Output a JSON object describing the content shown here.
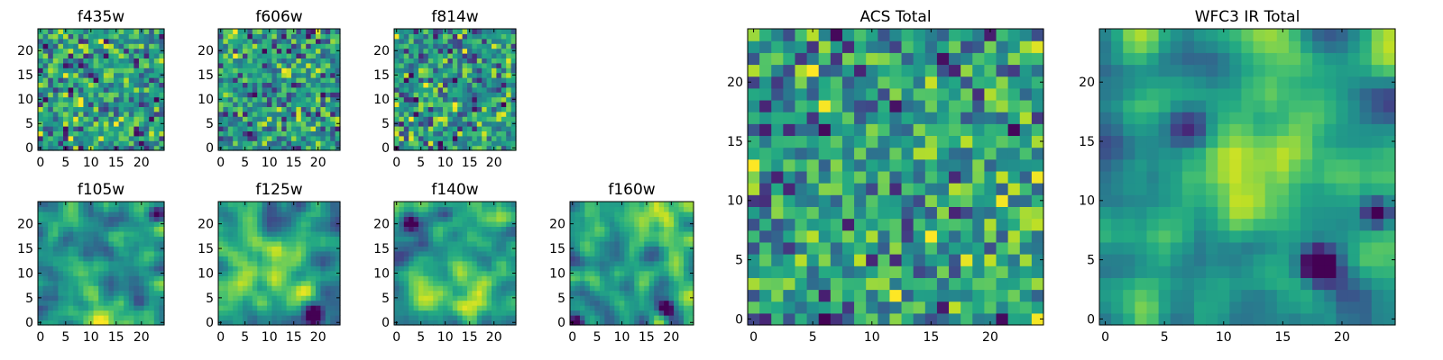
{
  "chart_data": [
    {
      "type": "heatmap",
      "title": "f435w",
      "x_ticks": [
        "0",
        "5",
        "10",
        "15",
        "20"
      ],
      "y_ticks": [
        "0",
        "5",
        "10",
        "15",
        "20"
      ],
      "xlim": [
        0,
        24
      ],
      "ylim": [
        0,
        24
      ],
      "colormap": "viridis",
      "pattern": "uniform noise"
    },
    {
      "type": "heatmap",
      "title": "f606w",
      "x_ticks": [
        "0",
        "5",
        "10",
        "15",
        "20"
      ],
      "y_ticks": [
        "0",
        "5",
        "10",
        "15",
        "20"
      ],
      "xlim": [
        0,
        24
      ],
      "ylim": [
        0,
        24
      ],
      "colormap": "viridis",
      "pattern": "uniform noise"
    },
    {
      "type": "heatmap",
      "title": "f814w",
      "x_ticks": [
        "0",
        "5",
        "10",
        "15",
        "20"
      ],
      "y_ticks": [
        "0",
        "5",
        "10",
        "15",
        "20"
      ],
      "xlim": [
        0,
        24
      ],
      "ylim": [
        0,
        24
      ],
      "colormap": "viridis",
      "pattern": "uniform noise"
    },
    {
      "type": "heatmap",
      "title": "f105w",
      "x_ticks": [
        "0",
        "5",
        "10",
        "15",
        "20"
      ],
      "y_ticks": [
        "0",
        "5",
        "10",
        "15",
        "20"
      ],
      "xlim": [
        0,
        24
      ],
      "ylim": [
        0,
        24
      ],
      "colormap": "viridis",
      "pattern": "smooth, bright lower-center"
    },
    {
      "type": "heatmap",
      "title": "f125w",
      "x_ticks": [
        "0",
        "5",
        "10",
        "15",
        "20"
      ],
      "y_ticks": [
        "0",
        "5",
        "10",
        "15",
        "20"
      ],
      "xlim": [
        0,
        24
      ],
      "ylim": [
        0,
        24
      ],
      "colormap": "viridis",
      "pattern": "smooth, bright center"
    },
    {
      "type": "heatmap",
      "title": "f140w",
      "x_ticks": [
        "0",
        "5",
        "10",
        "15",
        "20"
      ],
      "y_ticks": [
        "0",
        "5",
        "10",
        "15",
        "20"
      ],
      "xlim": [
        0,
        24
      ],
      "ylim": [
        0,
        24
      ],
      "colormap": "viridis",
      "pattern": "smooth, dark spots upper-left"
    },
    {
      "type": "heatmap",
      "title": "f160w",
      "x_ticks": [
        "0",
        "5",
        "10",
        "15",
        "20"
      ],
      "y_ticks": [
        "0",
        "5",
        "10",
        "15",
        "20"
      ],
      "xlim": [
        0,
        24
      ],
      "ylim": [
        0,
        24
      ],
      "colormap": "viridis",
      "pattern": "smooth, dark spot lower-right"
    },
    {
      "type": "heatmap",
      "title": "ACS Total",
      "x_ticks": [
        "0",
        "5",
        "10",
        "15",
        "20"
      ],
      "y_ticks": [
        "0",
        "5",
        "10",
        "15",
        "20"
      ],
      "xlim": [
        0,
        24
      ],
      "ylim": [
        0,
        24
      ],
      "colormap": "viridis",
      "pattern": "uniform noise, scattered dark pixels"
    },
    {
      "type": "heatmap",
      "title": "WFC3 IR Total",
      "x_ticks": [
        "0",
        "5",
        "10",
        "15",
        "20"
      ],
      "y_ticks": [
        "0",
        "5",
        "10",
        "15",
        "20"
      ],
      "xlim": [
        0,
        24
      ],
      "ylim": [
        0,
        24
      ],
      "colormap": "viridis",
      "pattern": "smooth, bright diagonal band, dark blob near (18,4)"
    }
  ]
}
